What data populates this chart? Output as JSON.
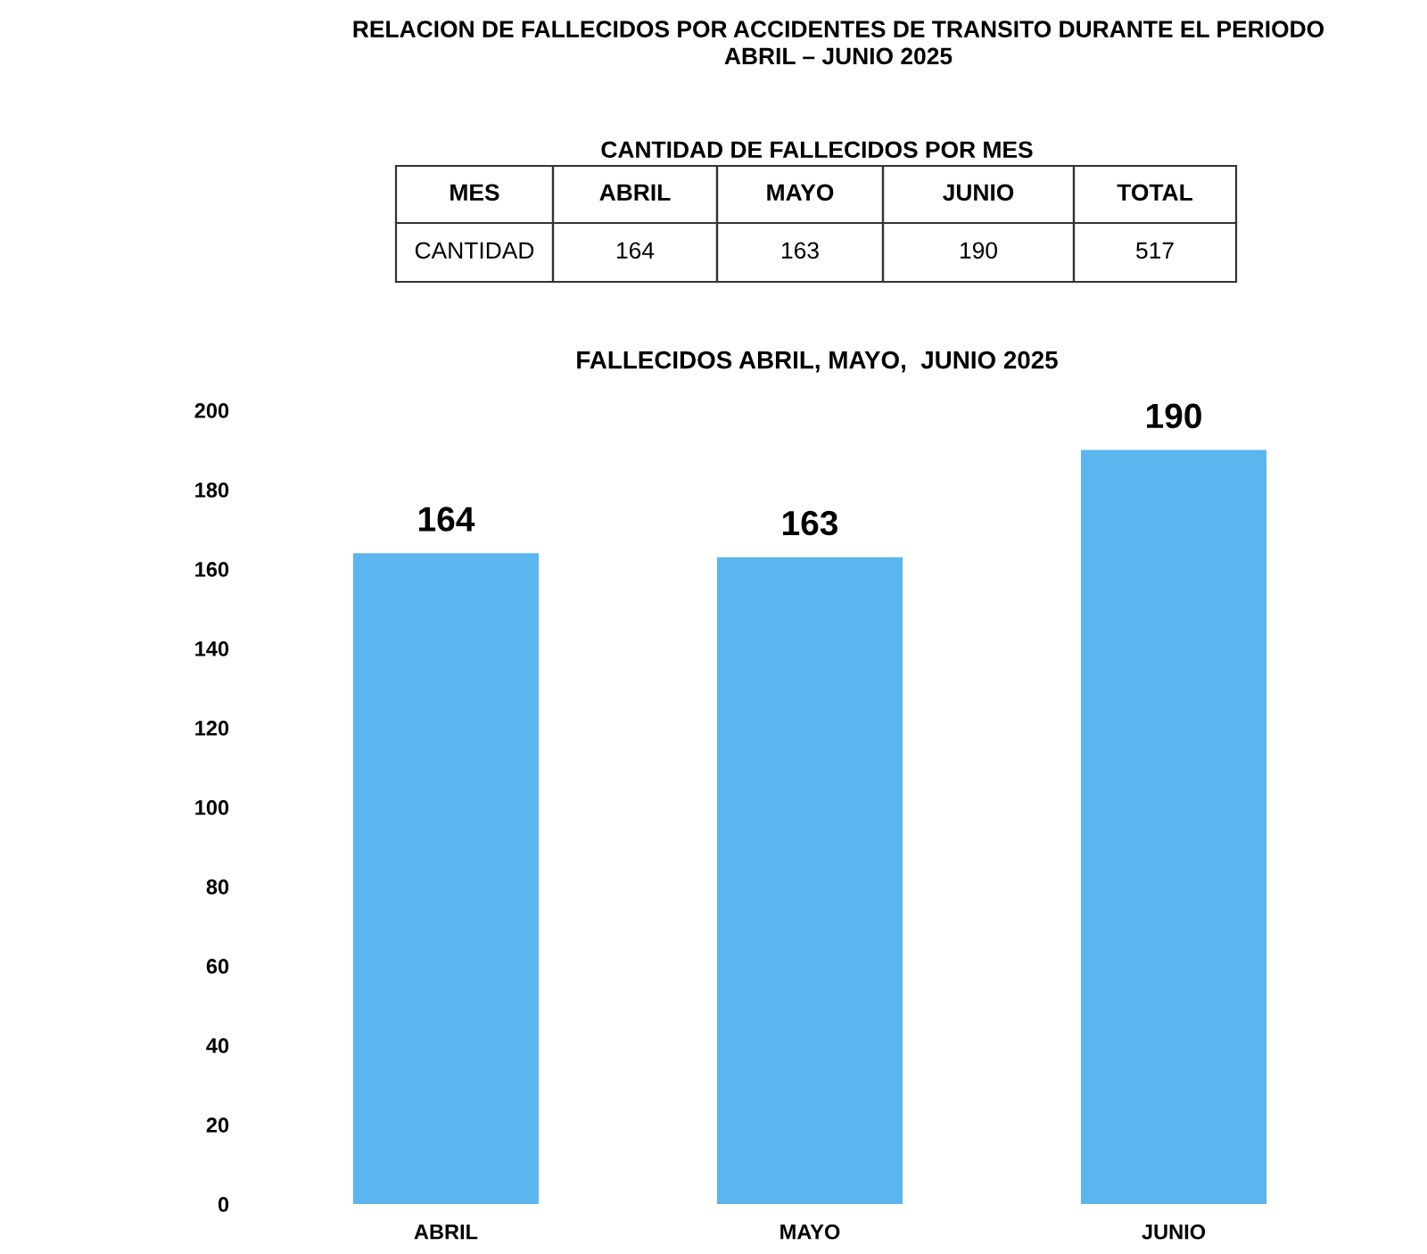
{
  "chart_data": {
    "type": "bar",
    "title": "RELACION DE FALLECIDOS POR ACCIDENTES DE TRANSITO DURANTE EL PERIODO\nABRIL – JUNIO 2025",
    "subtitle": "FALLECIDOS ABRIL, MAYO,  JUNIO 2025",
    "categories": [
      "ABRIL",
      "MAYO",
      "JUNIO"
    ],
    "values": [
      164,
      163,
      190
    ],
    "color": "#5bb5ee",
    "ylim": [
      0,
      200
    ],
    "yticks": [
      0,
      20,
      40,
      60,
      80,
      100,
      120,
      140,
      160,
      180,
      200
    ],
    "data_labels": true,
    "grid": false,
    "legend": false,
    "annotations": [
      "CANTIDAD DE FALLECIDOS POR MES",
      "MES",
      "CANTIDAD",
      "TOTAL",
      "164",
      "163",
      "190",
      "517"
    ]
  }
}
